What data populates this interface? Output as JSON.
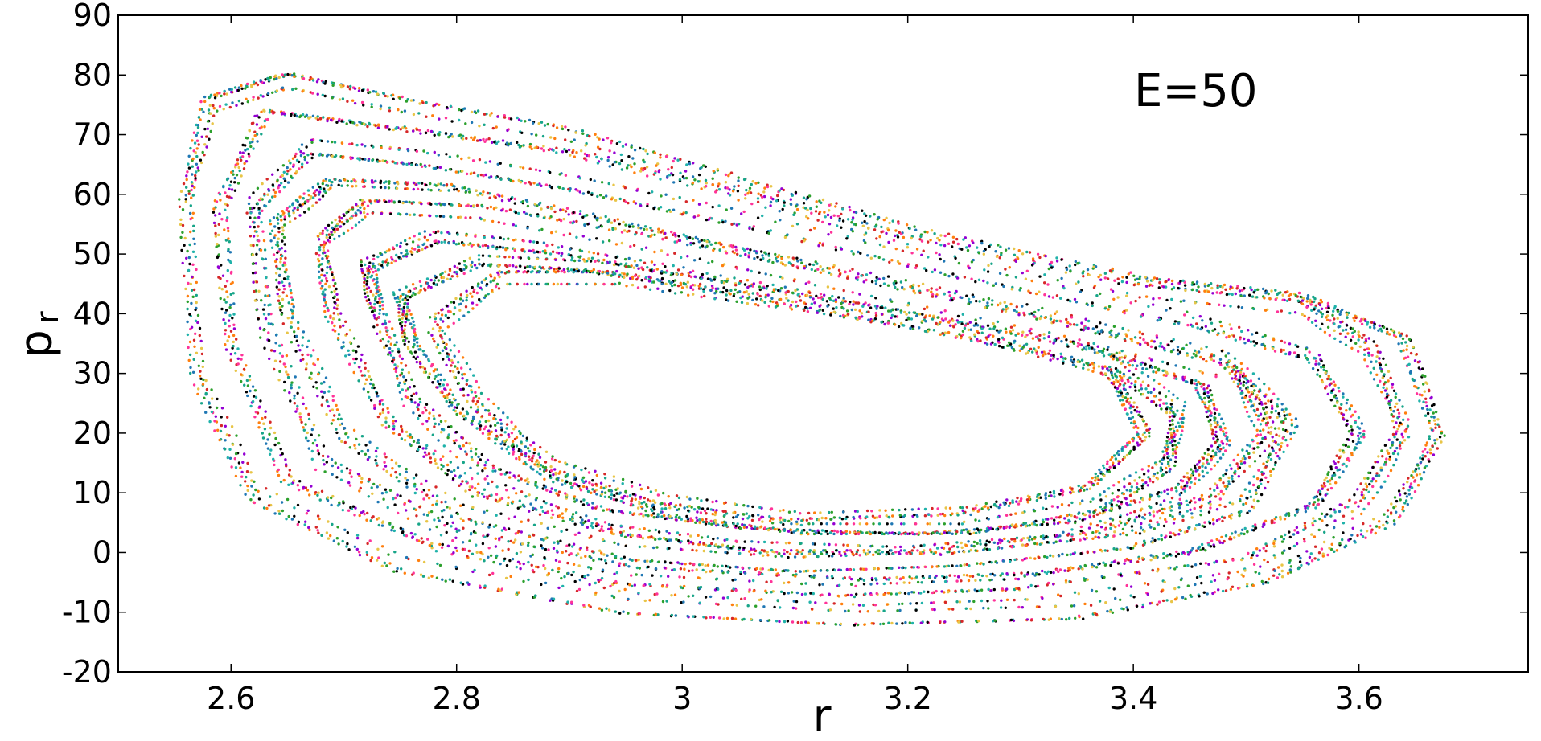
{
  "chart_data": {
    "type": "scatter",
    "title": "",
    "xlabel": "r",
    "ylabel_main": "p",
    "ylabel_sub": "r",
    "annotation": "E=50",
    "xlim": [
      2.5,
      3.75
    ],
    "ylim": [
      -20,
      90
    ],
    "xticks": [
      2.6,
      2.8,
      3,
      3.2,
      3.4,
      3.6
    ],
    "xtick_labels": [
      "2.6",
      "2.8",
      "3",
      "3.2",
      "3.4",
      "3.6"
    ],
    "yticks": [
      -20,
      -10,
      0,
      10,
      20,
      30,
      40,
      50,
      60,
      70,
      80,
      90
    ],
    "ytick_labels": [
      "-20",
      "-10",
      "0",
      "10",
      "20",
      "30",
      "40",
      "50",
      "60",
      "70",
      "80",
      "90"
    ],
    "grid": false,
    "legend": "none",
    "colors": [
      "#000000",
      "#1f77b4",
      "#2ca02c",
      "#17a589",
      "#e8c547",
      "#ff7f0e",
      "#d62728",
      "#ff3399",
      "#9400d3",
      "#20b2aa"
    ],
    "series": [
      {
        "values": [
          [
            2.56,
            58
          ],
          [
            2.58,
            75
          ],
          [
            2.65,
            79
          ],
          [
            2.75,
            75
          ],
          [
            2.9,
            70
          ],
          [
            3.05,
            62
          ],
          [
            3.2,
            54
          ],
          [
            3.4,
            46
          ],
          [
            3.55,
            43
          ],
          [
            3.64,
            36
          ],
          [
            3.67,
            20
          ],
          [
            3.63,
            6
          ],
          [
            3.52,
            -4
          ],
          [
            3.35,
            -10
          ],
          [
            3.15,
            -11
          ],
          [
            2.95,
            -9
          ],
          [
            2.75,
            -2
          ],
          [
            2.62,
            10
          ],
          [
            2.57,
            30
          ]
        ]
      },
      {
        "values": [
          [
            2.59,
            58
          ],
          [
            2.63,
            74
          ],
          [
            2.75,
            71
          ],
          [
            2.9,
            67
          ],
          [
            3.05,
            60
          ],
          [
            3.2,
            52
          ],
          [
            3.4,
            44
          ],
          [
            3.55,
            41
          ],
          [
            3.61,
            34
          ],
          [
            3.64,
            20
          ],
          [
            3.6,
            8
          ],
          [
            3.5,
            -2
          ],
          [
            3.3,
            -7
          ],
          [
            3.15,
            -8
          ],
          [
            2.95,
            -6
          ],
          [
            2.78,
            1
          ],
          [
            2.65,
            12
          ],
          [
            2.6,
            35
          ]
        ]
      },
      {
        "values": [
          [
            2.62,
            58
          ],
          [
            2.67,
            68
          ],
          [
            2.77,
            66
          ],
          [
            2.9,
            62
          ],
          [
            3.05,
            56
          ],
          [
            3.25,
            47
          ],
          [
            3.45,
            39
          ],
          [
            3.56,
            33
          ],
          [
            3.6,
            20
          ],
          [
            3.56,
            8
          ],
          [
            3.45,
            0
          ],
          [
            3.3,
            -4
          ],
          [
            3.15,
            -5
          ],
          [
            2.95,
            -3
          ],
          [
            2.8,
            3
          ],
          [
            2.68,
            15
          ],
          [
            2.63,
            38
          ]
        ]
      },
      {
        "values": [
          [
            2.64,
            55
          ],
          [
            2.69,
            62
          ],
          [
            2.8,
            61
          ],
          [
            2.95,
            55
          ],
          [
            3.1,
            49
          ],
          [
            3.3,
            41
          ],
          [
            3.48,
            33
          ],
          [
            3.54,
            22
          ],
          [
            3.5,
            8
          ],
          [
            3.4,
            2
          ],
          [
            3.25,
            -1
          ],
          [
            3.1,
            -2
          ],
          [
            2.95,
            0
          ],
          [
            2.8,
            7
          ],
          [
            2.7,
            20
          ],
          [
            2.65,
            40
          ]
        ]
      },
      {
        "values": [
          [
            2.68,
            52
          ],
          [
            2.72,
            58
          ],
          [
            2.82,
            57
          ],
          [
            2.97,
            52
          ],
          [
            3.12,
            46
          ],
          [
            3.32,
            38
          ],
          [
            3.49,
            30
          ],
          [
            3.52,
            20
          ],
          [
            3.47,
            9
          ],
          [
            3.37,
            3
          ],
          [
            3.22,
            0
          ],
          [
            3.08,
            0
          ],
          [
            2.95,
            3
          ],
          [
            2.82,
            10
          ],
          [
            2.74,
            22
          ],
          [
            2.69,
            40
          ]
        ]
      },
      {
        "values": [
          [
            2.72,
            48
          ],
          [
            2.78,
            53
          ],
          [
            2.88,
            51
          ],
          [
            3.0,
            47
          ],
          [
            3.15,
            42
          ],
          [
            3.35,
            35
          ],
          [
            3.46,
            28
          ],
          [
            3.48,
            18
          ],
          [
            3.44,
            10
          ],
          [
            3.34,
            4
          ],
          [
            3.2,
            2
          ],
          [
            3.05,
            3
          ],
          [
            2.93,
            6
          ],
          [
            2.83,
            13
          ],
          [
            2.76,
            25
          ],
          [
            2.73,
            40
          ]
        ]
      },
      {
        "values": [
          [
            2.75,
            43
          ],
          [
            2.82,
            49
          ],
          [
            2.92,
            48
          ],
          [
            3.05,
            44
          ],
          [
            3.2,
            39
          ],
          [
            3.38,
            32
          ],
          [
            3.44,
            24
          ],
          [
            3.43,
            15
          ],
          [
            3.37,
            8
          ],
          [
            3.25,
            4
          ],
          [
            3.1,
            4
          ],
          [
            2.98,
            7
          ],
          [
            2.88,
            13
          ],
          [
            2.8,
            24
          ],
          [
            2.76,
            35
          ]
        ]
      },
      {
        "values": [
          [
            2.78,
            38
          ],
          [
            2.84,
            46
          ],
          [
            2.94,
            46
          ],
          [
            3.08,
            42
          ],
          [
            3.25,
            37
          ],
          [
            3.38,
            30
          ],
          [
            3.41,
            20
          ],
          [
            3.36,
            11
          ],
          [
            3.25,
            7
          ],
          [
            3.1,
            6
          ],
          [
            2.98,
            9
          ],
          [
            2.88,
            15
          ],
          [
            2.82,
            25
          ]
        ]
      }
    ]
  }
}
